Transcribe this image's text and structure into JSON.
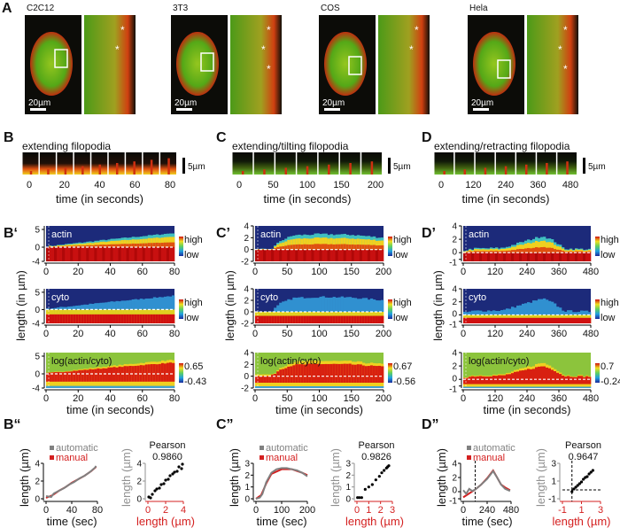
{
  "colors": {
    "automatic": "#808080",
    "manual": "#d42020",
    "axis_red": "#d42020",
    "kymo_bg": "#1c2a7a",
    "log_bg": "#8cc43c"
  },
  "panel_labels": {
    "A": "A",
    "B": "B",
    "C": "C",
    "D": "D",
    "Bp": "B‘",
    "Cp": "C’",
    "Dp": "D’",
    "Bpp": "B“",
    "Cpp": "C”",
    "Dpp": "D”"
  },
  "cells": [
    {
      "name": "C2C12",
      "scale_bar": "20µm",
      "markers": [
        "*",
        "*"
      ]
    },
    {
      "name": "3T3",
      "scale_bar": "20µm",
      "markers": [
        "*",
        "*",
        "*"
      ]
    },
    {
      "name": "COS",
      "scale_bar": "20µm",
      "markers": [
        "*",
        "*"
      ]
    },
    {
      "name": "Hela",
      "scale_bar": "20µm",
      "markers": [
        "*",
        "*",
        "*"
      ]
    }
  ],
  "timelapse": [
    {
      "title": "extending filopodia",
      "frames": 9,
      "ticks": [
        "0",
        "20",
        "40",
        "60",
        "80"
      ],
      "xlabel": "time (in seconds)",
      "scale_bar": "5µm"
    },
    {
      "title": "extending/tilting filopodia",
      "frames": 7,
      "ticks": [
        "0",
        "50",
        "100",
        "150",
        "200"
      ],
      "xlabel": "time (in seconds)",
      "scale_bar": "5µm"
    },
    {
      "title": "extending/retracting filopodia",
      "frames": 7,
      "ticks": [
        "0",
        "120",
        "240",
        "360",
        "480"
      ],
      "xlabel": "time (in seconds)",
      "scale_bar": "5µm"
    }
  ],
  "kymographs": [
    {
      "ylabel": "length (in µm)",
      "xlabel": "time (in seconds)",
      "xmax": 80,
      "ymin": -4,
      "ymax": 6,
      "x_ticks": [
        "0",
        "20",
        "40",
        "60",
        "80"
      ],
      "y_ticks": [
        "5",
        "0",
        "-4"
      ],
      "y_tick_values": [
        5,
        0,
        -4
      ],
      "rows": [
        {
          "label": "actin",
          "cbar": [
            "high",
            "low"
          ]
        },
        {
          "label": "cyto",
          "cbar": [
            "high",
            "low"
          ]
        },
        {
          "label": "log(actin/cyto)",
          "cbar": [
            "0.65",
            "-0.43"
          ]
        }
      ],
      "front_t": [
        0,
        20,
        40,
        60,
        80
      ],
      "front_um": [
        0.2,
        1.2,
        2.2,
        3.1,
        4.0
      ]
    },
    {
      "ylabel": "length (in µm)",
      "xlabel": "time (in seconds)",
      "xmax": 200,
      "ymin": -2,
      "ymax": 4,
      "x_ticks": [
        "0",
        "50",
        "100",
        "150",
        "200"
      ],
      "y_ticks": [
        "4",
        "2",
        "0",
        "-2"
      ],
      "y_tick_values": [
        4,
        2,
        0,
        -2
      ],
      "rows": [
        {
          "label": "actin",
          "cbar": [
            "high",
            "low"
          ]
        },
        {
          "label": "cyto",
          "cbar": [
            "high",
            "low"
          ]
        },
        {
          "label": "log(actin/cyto)",
          "cbar": [
            "0.67",
            "-0.56"
          ]
        }
      ],
      "front_t": [
        0,
        25,
        40,
        60,
        100,
        150,
        200
      ],
      "front_um": [
        0,
        0,
        1.5,
        2.4,
        2.6,
        2.5,
        2.0
      ]
    },
    {
      "ylabel": "length (in µm)",
      "xlabel": "time (in seconds)",
      "xmax": 480,
      "ymin": -1.3,
      "ymax": 4,
      "x_ticks": [
        "0",
        "120",
        "240",
        "360",
        "480"
      ],
      "y_ticks": [
        "4",
        "2",
        "0",
        "-1"
      ],
      "y_tick_values": [
        4,
        2,
        0,
        -1
      ],
      "rows": [
        {
          "label": "actin",
          "cbar": [
            "high",
            "low"
          ]
        },
        {
          "label": "cyto",
          "cbar": [
            "high",
            "low"
          ]
        },
        {
          "label": "log(actin/cyto)",
          "cbar": [
            "0.7",
            "-0.24"
          ]
        }
      ],
      "front_t": [
        0,
        40,
        150,
        240,
        300,
        340,
        380,
        480
      ],
      "front_um": [
        0.3,
        0.6,
        0.7,
        1.8,
        2.5,
        1.8,
        0.6,
        0.5
      ]
    }
  ],
  "comparisons": [
    {
      "time_plot": {
        "xlabel": "time (sec)",
        "ylabel": "length (µm)",
        "legend": [
          "automatic",
          "manual"
        ],
        "x_ticks": [
          "0",
          "40",
          "80"
        ],
        "x_tick_values": [
          0,
          40,
          80
        ],
        "xlim": [
          0,
          80
        ],
        "y_ticks": [
          "4",
          "2",
          "0"
        ],
        "y_tick_values": [
          4,
          2,
          0
        ],
        "ylim": [
          0,
          4
        ],
        "automatic": [
          [
            0,
            0.3
          ],
          [
            8,
            0.2
          ],
          [
            12,
            0.6
          ],
          [
            20,
            0.9
          ],
          [
            28,
            1.2
          ],
          [
            36,
            1.6
          ],
          [
            44,
            1.9
          ],
          [
            52,
            2.3
          ],
          [
            60,
            2.6
          ],
          [
            68,
            3.0
          ],
          [
            76,
            3.5
          ],
          [
            78,
            3.7
          ]
        ],
        "manual": [
          [
            0,
            0.1
          ],
          [
            10,
            0.4
          ],
          [
            20,
            0.9
          ],
          [
            30,
            1.3
          ],
          [
            40,
            1.8
          ],
          [
            50,
            2.2
          ],
          [
            60,
            2.6
          ],
          [
            70,
            3.1
          ],
          [
            78,
            3.6
          ]
        ]
      },
      "scatter": {
        "title": "Pearson",
        "r": "0.9860",
        "xlabel": "length (µm)",
        "ylabel": "length (µm)",
        "x_ticks": [
          "0",
          "2",
          "4"
        ],
        "x_tick_values": [
          0,
          2,
          4
        ],
        "xlim": [
          0,
          4
        ],
        "y_ticks": [
          "4",
          "2",
          "0"
        ],
        "y_tick_values": [
          4,
          2,
          0
        ],
        "ylim": [
          0,
          4
        ],
        "points": [
          [
            0.1,
            0.2
          ],
          [
            0.3,
            0.1
          ],
          [
            0.5,
            0.5
          ],
          [
            0.8,
            0.9
          ],
          [
            1.0,
            1.1
          ],
          [
            1.3,
            1.2
          ],
          [
            1.5,
            1.6
          ],
          [
            1.8,
            1.7
          ],
          [
            2.0,
            2.1
          ],
          [
            2.3,
            2.2
          ],
          [
            2.5,
            2.6
          ],
          [
            2.8,
            2.8
          ],
          [
            3.0,
            3.0
          ],
          [
            3.3,
            3.1
          ],
          [
            3.5,
            3.6
          ],
          [
            3.8,
            3.4
          ],
          [
            3.9,
            3.9
          ]
        ]
      }
    },
    {
      "time_plot": {
        "xlabel": "time (sec)",
        "ylabel": "length (µm)",
        "legend": [
          "automatic",
          "manual"
        ],
        "x_ticks": [
          "0",
          "100",
          "200"
        ],
        "x_tick_values": [
          0,
          100,
          200
        ],
        "xlim": [
          0,
          200
        ],
        "y_ticks": [
          "3",
          "2",
          "1",
          "0"
        ],
        "y_tick_values": [
          3,
          2,
          1,
          0
        ],
        "ylim": [
          0,
          3
        ],
        "automatic": [
          [
            0,
            0
          ],
          [
            15,
            0.1
          ],
          [
            25,
            0.4
          ],
          [
            40,
            1.4
          ],
          [
            60,
            2.2
          ],
          [
            80,
            2.5
          ],
          [
            100,
            2.6
          ],
          [
            120,
            2.6
          ],
          [
            140,
            2.5
          ],
          [
            160,
            2.4
          ],
          [
            180,
            2.2
          ],
          [
            200,
            1.9
          ]
        ],
        "manual": [
          [
            0,
            0
          ],
          [
            20,
            0.3
          ],
          [
            40,
            1.3
          ],
          [
            60,
            2.1
          ],
          [
            100,
            2.5
          ],
          [
            140,
            2.5
          ],
          [
            180,
            2.2
          ],
          [
            200,
            2.0
          ]
        ]
      },
      "scatter": {
        "title": "Pearson",
        "r": "0.9826",
        "xlabel": "length (µm)",
        "ylabel": "length (µm)",
        "x_ticks": [
          "0",
          "1",
          "2",
          "3"
        ],
        "x_tick_values": [
          0,
          1,
          2,
          3
        ],
        "xlim": [
          0,
          3
        ],
        "y_ticks": [
          "3",
          "2",
          "1",
          "0"
        ],
        "y_tick_values": [
          3,
          2,
          1,
          0
        ],
        "ylim": [
          0,
          3
        ],
        "points": [
          [
            0.05,
            0.1
          ],
          [
            0.2,
            0.1
          ],
          [
            0.4,
            0.1
          ],
          [
            0.7,
            0.8
          ],
          [
            1.0,
            1.0
          ],
          [
            1.3,
            1.2
          ],
          [
            1.6,
            1.6
          ],
          [
            1.9,
            1.9
          ],
          [
            2.1,
            2.2
          ],
          [
            2.3,
            2.4
          ],
          [
            2.5,
            2.6
          ],
          [
            2.6,
            2.7
          ],
          [
            2.7,
            2.8
          ]
        ]
      }
    },
    {
      "time_plot": {
        "xlabel": "time (sec)",
        "ylabel": "length (µm)",
        "legend": [
          "automatic",
          "manual"
        ],
        "x_ticks": [
          "0",
          "240",
          "480"
        ],
        "x_tick_values": [
          0,
          240,
          480
        ],
        "xlim": [
          0,
          480
        ],
        "y_ticks": [
          "4",
          "2",
          "0",
          "-1"
        ],
        "y_tick_values": [
          4,
          2,
          0,
          -1
        ],
        "ylim": [
          -1,
          4
        ],
        "marker_time": 120,
        "automatic": [
          [
            0,
            0.2
          ],
          [
            30,
            -0.3
          ],
          [
            60,
            0.4
          ],
          [
            90,
            0.1
          ],
          [
            120,
            0.3
          ],
          [
            180,
            1.0
          ],
          [
            240,
            1.8
          ],
          [
            300,
            2.9
          ],
          [
            340,
            2.0
          ],
          [
            380,
            1.0
          ],
          [
            420,
            0.4
          ],
          [
            470,
            0.1
          ]
        ],
        "manual": [
          [
            0,
            -0.8
          ],
          [
            120,
            0.3
          ],
          [
            180,
            1.0
          ],
          [
            240,
            1.9
          ],
          [
            300,
            3.0
          ],
          [
            340,
            2.0
          ],
          [
            380,
            1.0
          ],
          [
            420,
            0.6
          ],
          [
            470,
            0.2
          ]
        ]
      },
      "scatter": {
        "title": "Pearson",
        "r": "0.9647",
        "xlabel": "length (µm)",
        "ylabel": "length (µm)",
        "x_ticks": [
          "-1",
          "1",
          "3"
        ],
        "x_tick_values": [
          -1,
          1,
          3
        ],
        "xlim": [
          -1,
          3
        ],
        "y_ticks": [
          "3",
          "1",
          "-1"
        ],
        "y_tick_values": [
          3,
          1,
          -1
        ],
        "ylim": [
          -1,
          3
        ],
        "points": [
          [
            0,
            -0.2
          ],
          [
            0.2,
            0.1
          ],
          [
            0.4,
            0.3
          ],
          [
            0.6,
            0.5
          ],
          [
            0.8,
            0.7
          ],
          [
            1.0,
            0.9
          ],
          [
            1.2,
            1.2
          ],
          [
            1.4,
            1.4
          ],
          [
            1.6,
            1.5
          ],
          [
            1.8,
            1.8
          ],
          [
            2.0,
            2.0
          ],
          [
            2.2,
            2.2
          ]
        ]
      }
    }
  ]
}
